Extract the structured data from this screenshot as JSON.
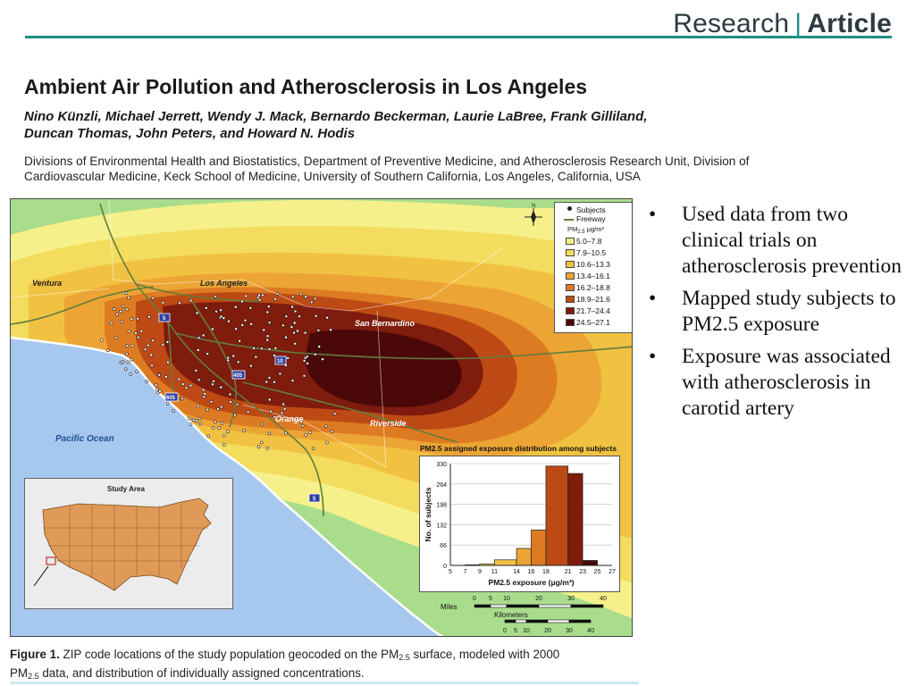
{
  "header": {
    "brand_left": "Research",
    "brand_right": "Article"
  },
  "paper": {
    "title": "Ambient Air Pollution and Atherosclerosis in Los Angeles",
    "authors_line1": "Nino Künzli, Michael Jerrett, Wendy J. Mack, Bernardo Beckerman, Laurie LaBree, Frank Gilliland,",
    "authors_line2": "Duncan Thomas, John Peters, and Howard N. Hodis",
    "affiliation_line1": "Divisions of Environmental Health and Biostatistics, Department of Preventive Medicine, and Atherosclerosis Research Unit, Division of",
    "affiliation_line2": "Cardiovascular Medicine, Keck School of Medicine, University of Southern California, Los Angeles, California, USA"
  },
  "map": {
    "places": {
      "ventura": "Ventura",
      "los_angeles": "Los Angeles",
      "san_bernardino": "San Bernardino",
      "orange": "Orange",
      "riverside": "Riverside",
      "pacific_ocean": "Pacific Ocean"
    },
    "freeway_shields": [
      "5",
      "10",
      "405",
      "605",
      "5"
    ],
    "inset_label": "Study Area",
    "legend": {
      "subjects": "Subjects",
      "freeway": "Freeway",
      "unit_prefix": "PM",
      "unit_sub": "2.5",
      "unit_suffix": " μg/m³",
      "classes": [
        {
          "label": "5.0–7.8",
          "color": "#f6f08a"
        },
        {
          "label": "7.9–10.5",
          "color": "#f3dc5e"
        },
        {
          "label": "10.6–13.3",
          "color": "#f1c241"
        },
        {
          "label": "13.4–16.1",
          "color": "#eca535"
        },
        {
          "label": "16.2–18.8",
          "color": "#dd7b22"
        },
        {
          "label": "18.9–21.6",
          "color": "#bd4a14"
        },
        {
          "label": "21.7–24.4",
          "color": "#7f1c0e"
        },
        {
          "label": "24.5–27.1",
          "color": "#4a0908"
        }
      ]
    },
    "scale": {
      "miles_label": "Miles",
      "miles_ticks": [
        "0",
        "5",
        "10",
        "20",
        "30",
        "40"
      ],
      "km_label": "Kilometers",
      "km_ticks": [
        "0",
        "5",
        "10",
        "20",
        "30",
        "40"
      ]
    }
  },
  "chart_data": {
    "type": "bar",
    "title": "PM2.5 assigned exposure distribution among subjects",
    "xlabel": "PM2.5 exposure (μg/m³)",
    "ylabel": "No. of subjects",
    "x_ticks": [
      "5",
      "7",
      "9",
      "11",
      "14",
      "16",
      "18",
      "21",
      "23",
      "25",
      "27"
    ],
    "y_ticks": [
      0,
      66,
      132,
      198,
      264,
      330
    ],
    "ylim": [
      0,
      330
    ],
    "xlim": [
      5,
      27
    ],
    "bins": [
      {
        "from": 7,
        "to": 9,
        "value": 2,
        "color": "#f3dc5e"
      },
      {
        "from": 9,
        "to": 11,
        "value": 5,
        "color": "#f3dc5e"
      },
      {
        "from": 11,
        "to": 14,
        "value": 18,
        "color": "#f1c241"
      },
      {
        "from": 14,
        "to": 16,
        "value": 55,
        "color": "#eca535"
      },
      {
        "from": 16,
        "to": 18,
        "value": 115,
        "color": "#dd7b22"
      },
      {
        "from": 18,
        "to": 21,
        "value": 322,
        "color": "#bd4a14"
      },
      {
        "from": 21,
        "to": 23,
        "value": 298,
        "color": "#7f1c0e"
      },
      {
        "from": 23,
        "to": 25,
        "value": 16,
        "color": "#4a0908"
      }
    ]
  },
  "caption": {
    "label": "Figure 1.",
    "text_a": " ZIP code locations of the study population geocoded on the PM",
    "sub": "2.5",
    "text_b": " surface, modeled with 2000",
    "text_c": "PM",
    "text_d": " data, and distribution of individually assigned concentrations."
  },
  "bullets": [
    "Used data from two clinical trials on atherosclerosis prevention",
    "Mapped study subjects to PM2.5 exposure",
    "Exposure was associated with atherosclerosis in carotid artery"
  ],
  "bullet_glyph": "•"
}
